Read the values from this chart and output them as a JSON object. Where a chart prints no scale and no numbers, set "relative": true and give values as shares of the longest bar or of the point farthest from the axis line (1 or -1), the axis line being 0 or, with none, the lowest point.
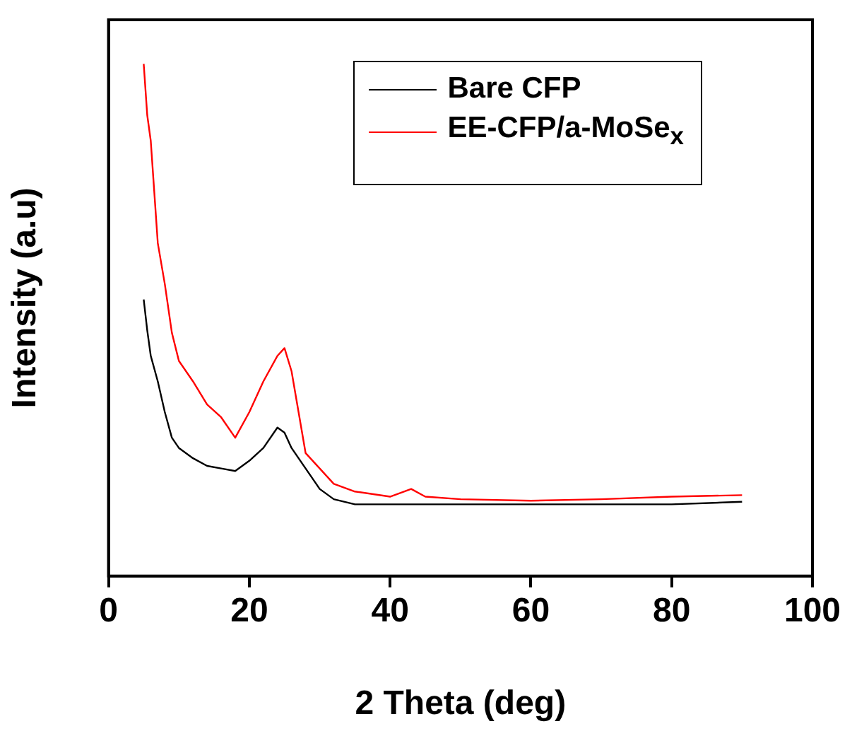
{
  "chart_data": {
    "type": "line",
    "relative": true,
    "xlabel": "2 Theta (deg)",
    "ylabel": "Intensity (a.u)",
    "xlim": [
      0,
      100
    ],
    "xticks": [
      0,
      20,
      40,
      60,
      80,
      100
    ],
    "legend": "top right",
    "grid": false,
    "marker": "none",
    "line_style": "solid",
    "series": [
      {
        "name": "Bare CFP",
        "color": "#000000",
        "x": [
          5,
          5.5,
          6,
          7,
          8,
          9,
          10,
          12,
          14,
          16,
          18,
          20,
          22,
          24,
          25,
          26,
          28,
          30,
          32,
          35,
          40,
          50,
          60,
          70,
          80,
          90
        ],
        "values": [
          0.54,
          0.48,
          0.43,
          0.38,
          0.32,
          0.27,
          0.25,
          0.23,
          0.215,
          0.21,
          0.205,
          0.225,
          0.25,
          0.29,
          0.28,
          0.25,
          0.21,
          0.17,
          0.15,
          0.14,
          0.14,
          0.14,
          0.14,
          0.14,
          0.14,
          0.145
        ]
      },
      {
        "name": "EE-CFP/a-MoSe$_{x}$",
        "color": "#ff0000",
        "x": [
          5,
          5.5,
          6,
          7,
          8,
          9,
          10,
          12,
          14,
          16,
          18,
          20,
          22,
          24,
          25,
          26,
          27,
          28,
          30,
          32,
          35,
          40,
          43,
          45,
          50,
          60,
          70,
          80,
          90
        ],
        "values": [
          1.0,
          0.9,
          0.85,
          0.65,
          0.57,
          0.475,
          0.42,
          0.38,
          0.335,
          0.31,
          0.27,
          0.32,
          0.38,
          0.43,
          0.445,
          0.4,
          0.32,
          0.24,
          0.21,
          0.18,
          0.165,
          0.155,
          0.17,
          0.155,
          0.15,
          0.147,
          0.15,
          0.155,
          0.158
        ]
      }
    ]
  }
}
